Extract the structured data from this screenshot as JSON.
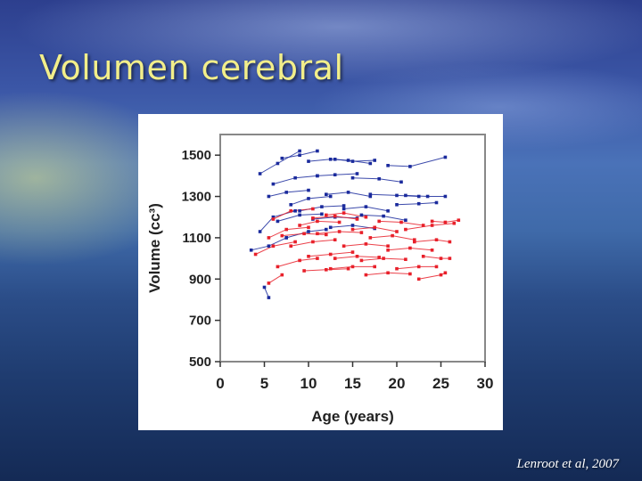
{
  "slide": {
    "title": "Volumen cerebral",
    "citation": "Lenroot et al, 2007"
  },
  "colors": {
    "title": "#f2ee8a",
    "series_blue": "#1a2a9c",
    "series_red": "#e8202a",
    "axis": "#888888"
  },
  "chart_data": {
    "type": "line",
    "title": "",
    "xlabel": "Age (years)",
    "ylabel": "Volume (cc³)",
    "xlim": [
      0,
      30
    ],
    "ylim": [
      500,
      1600
    ],
    "xticks": [
      0,
      5,
      10,
      15,
      20,
      25,
      30
    ],
    "yticks": [
      500,
      700,
      900,
      1100,
      1300,
      1500
    ],
    "grid": false,
    "legend": "none",
    "series": [
      {
        "color": "blue",
        "x": [
          4.5,
          6.5,
          9
        ],
        "y": [
          1410,
          1460,
          1520
        ]
      },
      {
        "color": "blue",
        "x": [
          7,
          9,
          11
        ],
        "y": [
          1485,
          1500,
          1520
        ]
      },
      {
        "color": "blue",
        "x": [
          10,
          12.5,
          14.5,
          17
        ],
        "y": [
          1470,
          1480,
          1475,
          1460
        ]
      },
      {
        "color": "blue",
        "x": [
          13,
          15,
          17.5
        ],
        "y": [
          1480,
          1470,
          1475
        ]
      },
      {
        "color": "blue",
        "x": [
          19,
          21.5,
          25.5
        ],
        "y": [
          1450,
          1445,
          1490
        ]
      },
      {
        "color": "blue",
        "x": [
          6,
          8.5,
          11
        ],
        "y": [
          1360,
          1390,
          1400
        ]
      },
      {
        "color": "blue",
        "x": [
          11,
          13,
          15.5
        ],
        "y": [
          1400,
          1405,
          1410
        ]
      },
      {
        "color": "blue",
        "x": [
          15,
          18,
          20.5
        ],
        "y": [
          1390,
          1385,
          1370
        ]
      },
      {
        "color": "blue",
        "x": [
          5.5,
          7.5,
          10
        ],
        "y": [
          1300,
          1320,
          1330
        ]
      },
      {
        "color": "blue",
        "x": [
          8,
          10,
          12.5
        ],
        "y": [
          1260,
          1290,
          1300
        ]
      },
      {
        "color": "blue",
        "x": [
          12,
          14.5,
          17
        ],
        "y": [
          1310,
          1320,
          1300
        ]
      },
      {
        "color": "blue",
        "x": [
          17,
          20,
          22.5
        ],
        "y": [
          1310,
          1305,
          1300
        ]
      },
      {
        "color": "blue",
        "x": [
          21,
          23.5,
          25.5
        ],
        "y": [
          1305,
          1300,
          1300
        ]
      },
      {
        "color": "blue",
        "x": [
          9,
          11.5,
          14
        ],
        "y": [
          1230,
          1250,
          1255
        ]
      },
      {
        "color": "blue",
        "x": [
          14,
          16.5,
          19
        ],
        "y": [
          1240,
          1250,
          1230
        ]
      },
      {
        "color": "blue",
        "x": [
          20,
          22.5,
          24.5
        ],
        "y": [
          1260,
          1265,
          1270
        ]
      },
      {
        "color": "blue",
        "x": [
          4.5,
          6,
          8.5
        ],
        "y": [
          1130,
          1200,
          1230
        ]
      },
      {
        "color": "blue",
        "x": [
          6.5,
          9,
          11.5
        ],
        "y": [
          1180,
          1210,
          1215
        ]
      },
      {
        "color": "blue",
        "x": [
          10.5,
          13,
          15.5
        ],
        "y": [
          1190,
          1200,
          1195
        ]
      },
      {
        "color": "blue",
        "x": [
          16,
          18.5,
          21
        ],
        "y": [
          1210,
          1205,
          1185
        ]
      },
      {
        "color": "blue",
        "x": [
          3.5,
          5.5,
          7.5
        ],
        "y": [
          1040,
          1060,
          1100
        ]
      },
      {
        "color": "blue",
        "x": [
          5,
          5.5
        ],
        "y": [
          860,
          810
        ]
      },
      {
        "color": "blue",
        "x": [
          7.5,
          10,
          12
        ],
        "y": [
          1100,
          1130,
          1140
        ]
      },
      {
        "color": "blue",
        "x": [
          12.5,
          15,
          17.5
        ],
        "y": [
          1150,
          1160,
          1145
        ]
      },
      {
        "color": "red",
        "x": [
          4,
          6,
          8.5
        ],
        "y": [
          1020,
          1060,
          1080
        ]
      },
      {
        "color": "red",
        "x": [
          5.5,
          7.5,
          10
        ],
        "y": [
          1100,
          1140,
          1150
        ]
      },
      {
        "color": "red",
        "x": [
          6,
          8,
          10.5
        ],
        "y": [
          1190,
          1230,
          1240
        ]
      },
      {
        "color": "red",
        "x": [
          6.5,
          9,
          11
        ],
        "y": [
          960,
          990,
          1000
        ]
      },
      {
        "color": "red",
        "x": [
          5.5,
          7
        ],
        "y": [
          880,
          920
        ]
      },
      {
        "color": "red",
        "x": [
          8,
          10.5,
          13
        ],
        "y": [
          1060,
          1080,
          1090
        ]
      },
      {
        "color": "red",
        "x": [
          9,
          11,
          13.5
        ],
        "y": [
          1160,
          1180,
          1175
        ]
      },
      {
        "color": "red",
        "x": [
          10,
          12.5,
          15
        ],
        "y": [
          1010,
          1020,
          1030
        ]
      },
      {
        "color": "red",
        "x": [
          11,
          13.5,
          16
        ],
        "y": [
          1120,
          1130,
          1125
        ]
      },
      {
        "color": "red",
        "x": [
          12,
          14,
          16.5
        ],
        "y": [
          1210,
          1220,
          1200
        ]
      },
      {
        "color": "red",
        "x": [
          12.5,
          15,
          17.5
        ],
        "y": [
          950,
          960,
          960
        ]
      },
      {
        "color": "red",
        "x": [
          14,
          16.5,
          19
        ],
        "y": [
          1060,
          1070,
          1060
        ]
      },
      {
        "color": "red",
        "x": [
          15,
          17.5,
          20
        ],
        "y": [
          1140,
          1150,
          1130
        ]
      },
      {
        "color": "red",
        "x": [
          16,
          18.5,
          21
        ],
        "y": [
          990,
          1000,
          995
        ]
      },
      {
        "color": "red",
        "x": [
          17,
          19.5,
          22
        ],
        "y": [
          1100,
          1110,
          1090
        ]
      },
      {
        "color": "red",
        "x": [
          18,
          20.5,
          23
        ],
        "y": [
          1180,
          1175,
          1160
        ]
      },
      {
        "color": "red",
        "x": [
          19,
          21.5,
          24
        ],
        "y": [
          1040,
          1050,
          1040
        ]
      },
      {
        "color": "red",
        "x": [
          20,
          22.5,
          24.5
        ],
        "y": [
          950,
          960,
          960
        ]
      },
      {
        "color": "red",
        "x": [
          21,
          24,
          26.5
        ],
        "y": [
          1140,
          1160,
          1170
        ]
      },
      {
        "color": "red",
        "x": [
          22,
          24.5,
          26
        ],
        "y": [
          1080,
          1090,
          1080
        ]
      },
      {
        "color": "red",
        "x": [
          23,
          25,
          26
        ],
        "y": [
          1010,
          1000,
          1000
        ]
      },
      {
        "color": "red",
        "x": [
          24,
          25.5,
          27
        ],
        "y": [
          1180,
          1175,
          1185
        ]
      },
      {
        "color": "red",
        "x": [
          22.5,
          25,
          25.5
        ],
        "y": [
          900,
          920,
          930
        ]
      },
      {
        "color": "red",
        "x": [
          7,
          9.5,
          12
        ],
        "y": [
          1110,
          1120,
          1115
        ]
      },
      {
        "color": "red",
        "x": [
          13,
          15.5,
          18
        ],
        "y": [
          1000,
          1010,
          1005
        ]
      },
      {
        "color": "red",
        "x": [
          9.5,
          12,
          14.5
        ],
        "y": [
          940,
          945,
          950
        ]
      },
      {
        "color": "red",
        "x": [
          16.5,
          19,
          21.5
        ],
        "y": [
          920,
          930,
          925
        ]
      },
      {
        "color": "red",
        "x": [
          10.5,
          13,
          15.5
        ],
        "y": [
          1195,
          1205,
          1190
        ]
      }
    ]
  }
}
